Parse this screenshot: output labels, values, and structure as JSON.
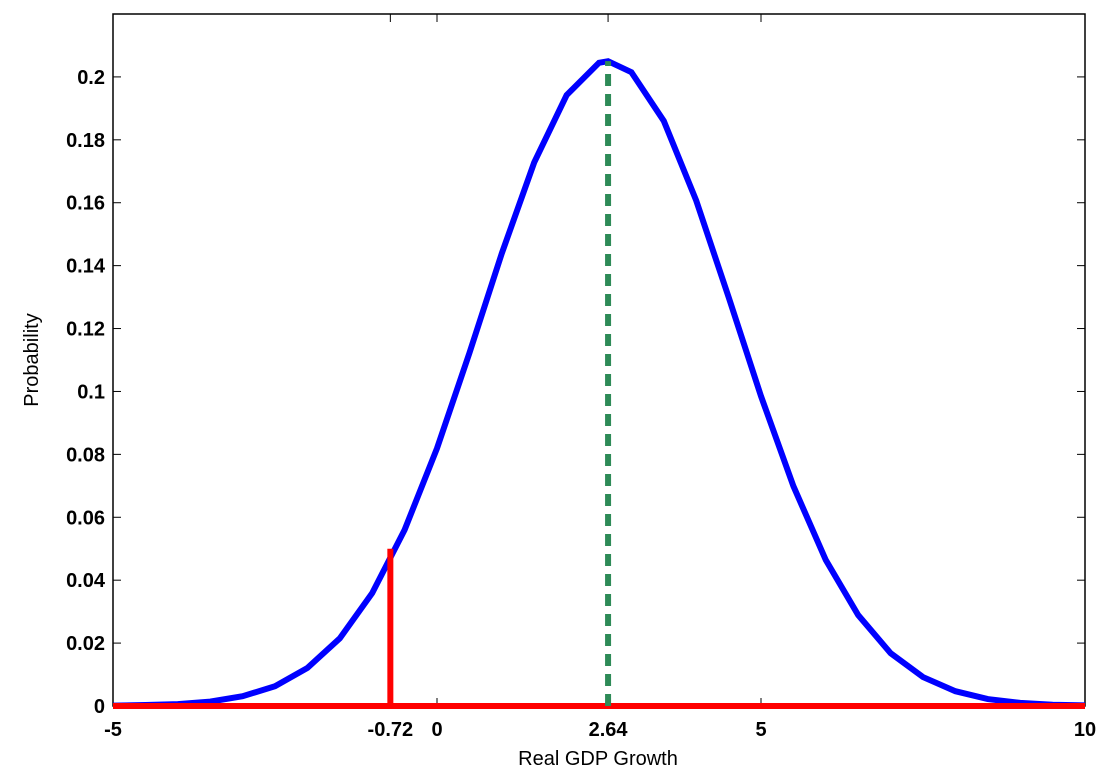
{
  "chart_data": {
    "type": "line",
    "xlabel": "Real GDP Growth",
    "ylabel": "Probability",
    "xlim": [
      -5,
      10
    ],
    "ylim": [
      0,
      0.22
    ],
    "xticks": [
      -5,
      -0.72,
      0,
      2.64,
      5,
      10
    ],
    "yticks": [
      0,
      0.02,
      0.04,
      0.06,
      0.08,
      0.1,
      0.12,
      0.14,
      0.16,
      0.18,
      0.2
    ],
    "series": [
      {
        "color": "#0000ff",
        "style": "solid",
        "x": [
          -5,
          -4.5,
          -4,
          -3.5,
          -3,
          -2.5,
          -2,
          -1.5,
          -1,
          -0.5,
          0,
          0.5,
          1,
          1.5,
          2,
          2.5,
          2.64,
          3,
          3.5,
          4,
          4.5,
          5,
          5.5,
          6,
          6.5,
          7,
          7.5,
          8,
          8.5,
          9,
          9.5,
          10
        ],
        "values": [
          0.0001,
          0.0003,
          0.0006,
          0.0014,
          0.0031,
          0.0063,
          0.0121,
          0.0215,
          0.0359,
          0.056,
          0.0819,
          0.1122,
          0.1439,
          0.1728,
          0.1942,
          0.2045,
          0.205,
          0.2015,
          0.186,
          0.1607,
          0.13,
          0.0985,
          0.0699,
          0.0464,
          0.0289,
          0.0168,
          0.0092,
          0.0047,
          0.0022,
          0.001,
          0.0004,
          0.0002
        ]
      },
      {
        "color": "#ff0000",
        "style": "solid",
        "x": [
          -5,
          -0.72,
          -0.72,
          -0.72,
          10
        ],
        "values": [
          0,
          0,
          0.05,
          0,
          0
        ]
      },
      {
        "color": "#2e8b57",
        "style": "dashed",
        "x": [
          2.64,
          2.64
        ],
        "values": [
          0,
          0.205
        ]
      }
    ]
  }
}
